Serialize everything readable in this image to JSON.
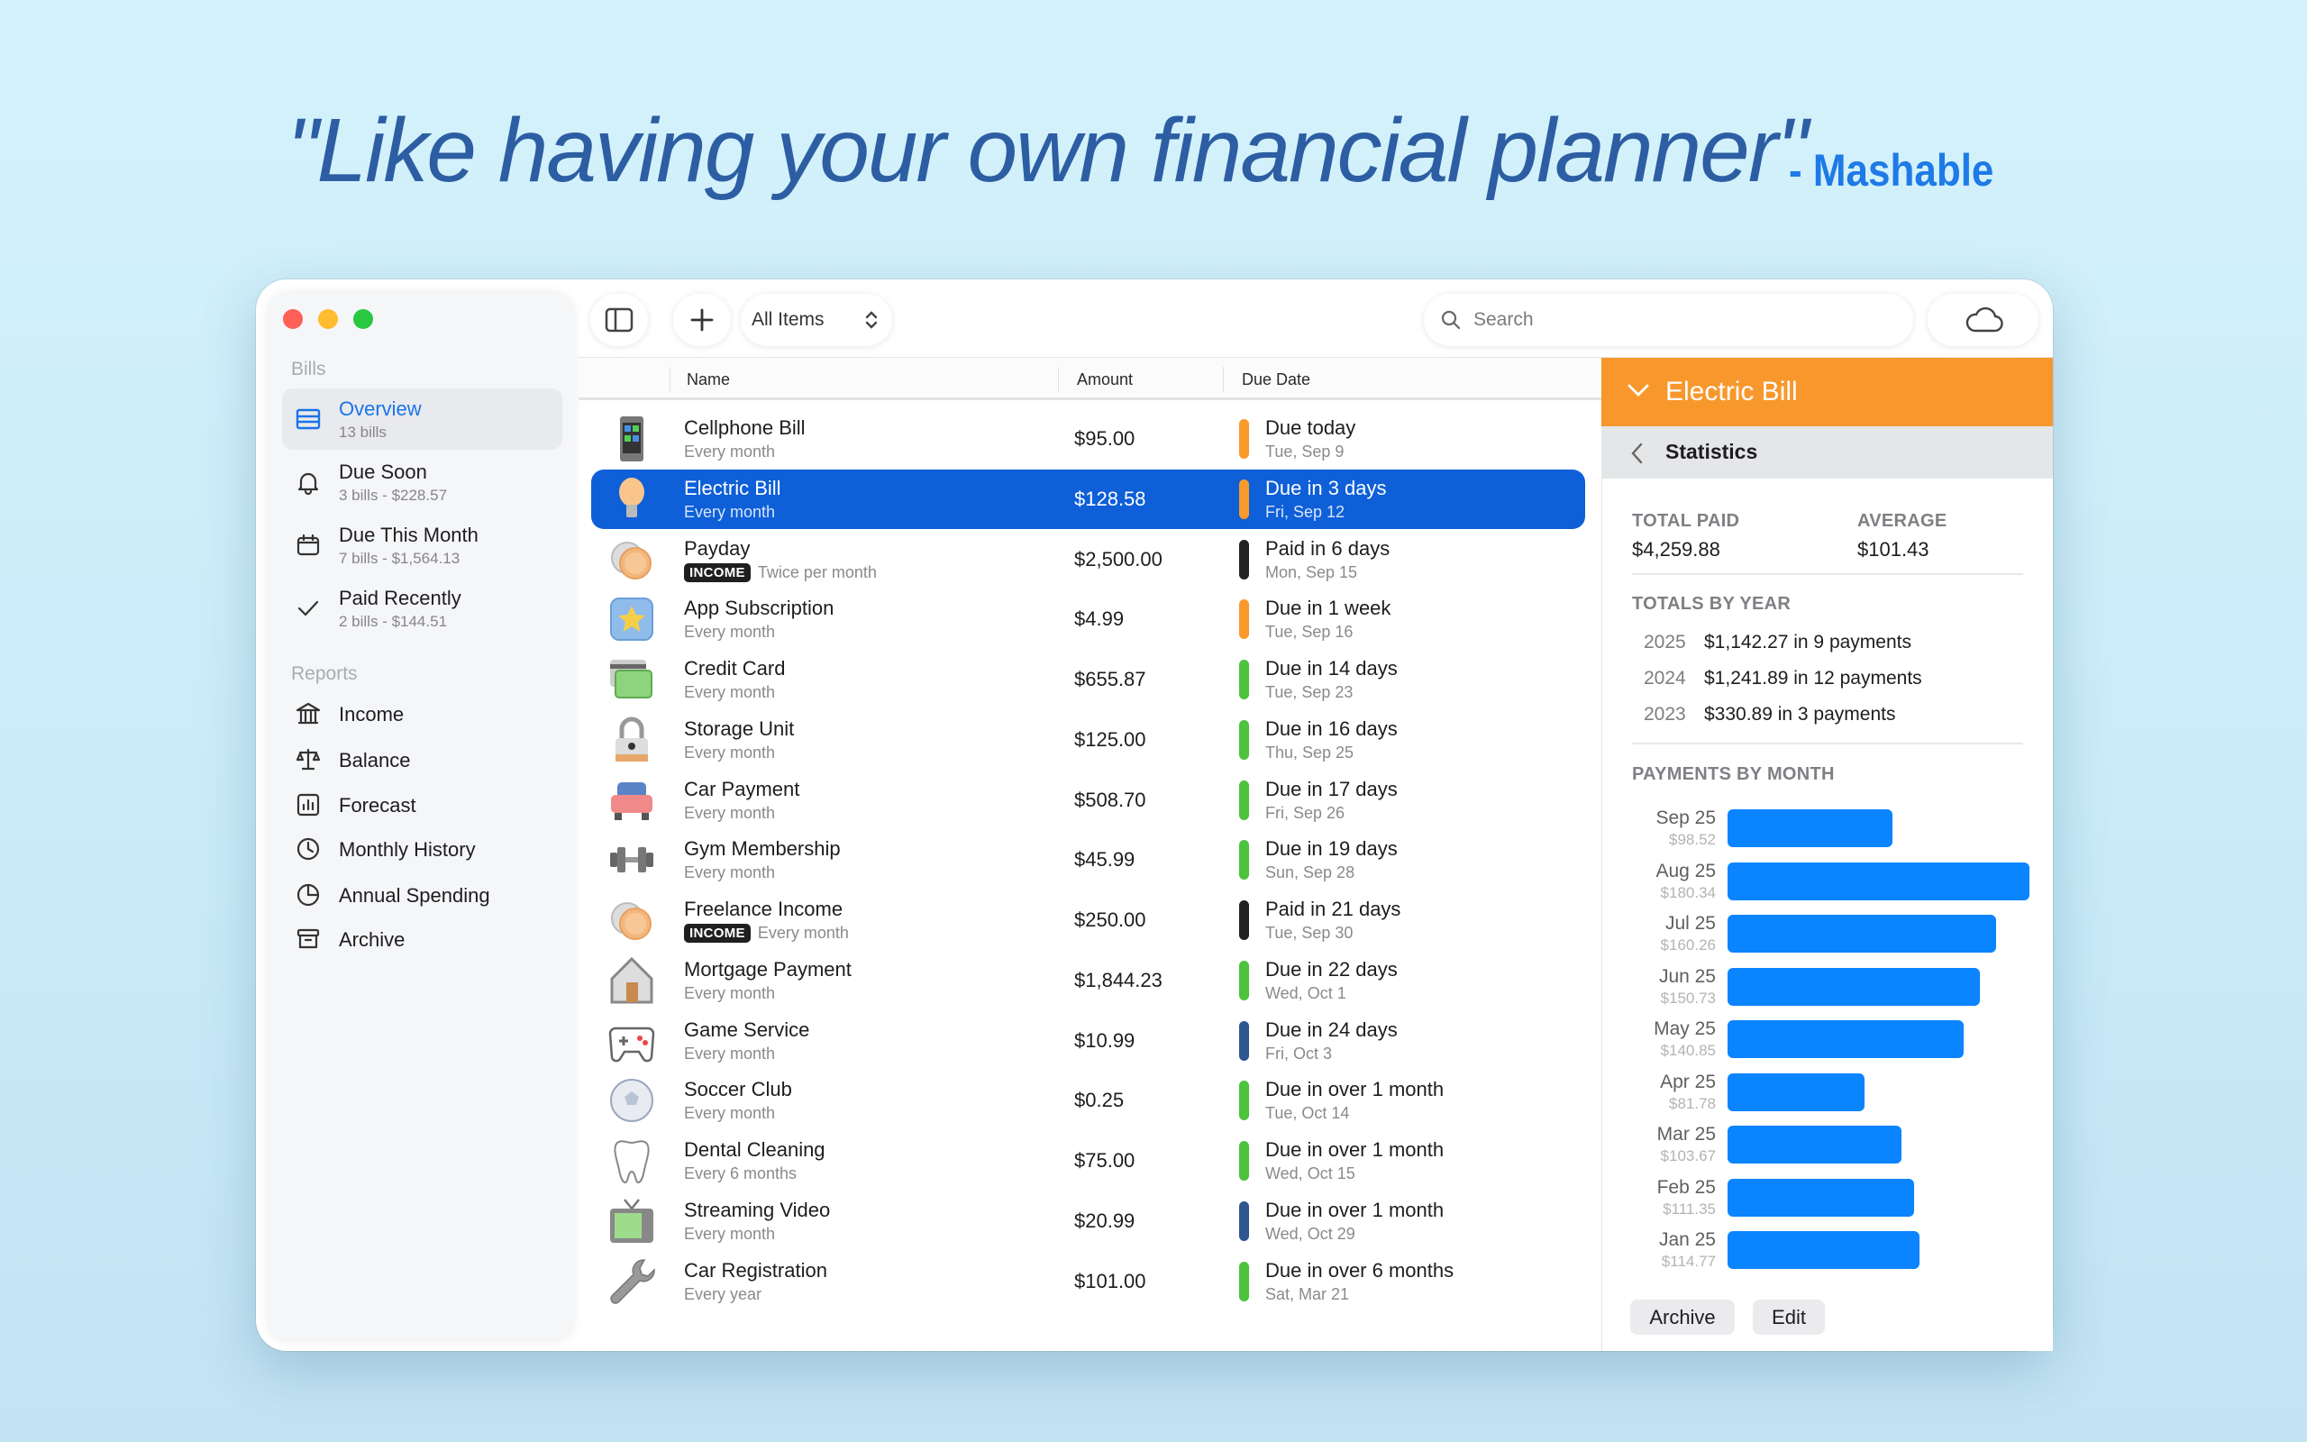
{
  "headline": {
    "quote": "\"Like having your own financial planner\"",
    "attribution": "- Mashable"
  },
  "toolbar": {
    "filter_label": "All Items",
    "search_placeholder": "Search"
  },
  "sidebar": {
    "bills_header": "Bills",
    "items": [
      {
        "title": "Overview",
        "sub": "13 bills",
        "icon": "overview-icon",
        "active": true
      },
      {
        "title": "Due Soon",
        "sub": "3 bills - $228.57",
        "icon": "bell-icon"
      },
      {
        "title": "Due This Month",
        "sub": "7 bills - $1,564.13",
        "icon": "calendar-icon"
      },
      {
        "title": "Paid Recently",
        "sub": "2 bills - $144.51",
        "icon": "checkmark-icon"
      }
    ],
    "reports_header": "Reports",
    "reports": [
      {
        "title": "Income",
        "icon": "bank-icon"
      },
      {
        "title": "Balance",
        "icon": "scale-icon"
      },
      {
        "title": "Forecast",
        "icon": "chart-icon"
      },
      {
        "title": "Monthly History",
        "icon": "clock-icon"
      },
      {
        "title": "Annual Spending",
        "icon": "pie-icon"
      },
      {
        "title": "Archive",
        "icon": "archive-icon"
      }
    ]
  },
  "list": {
    "columns": [
      "Name",
      "Amount",
      "Due Date"
    ],
    "status_colors": {
      "orange": "#fa9a2c",
      "black": "#232323",
      "green": "#4cc23d",
      "navy": "#2f5690"
    },
    "rows": [
      {
        "name": "Cellphone Bill",
        "sub": "Every month",
        "amount": "$95.00",
        "due": "Due today",
        "date": "Tue, Sep 9",
        "status": "orange",
        "icon": "cellphone"
      },
      {
        "name": "Electric Bill",
        "sub": "Every month",
        "amount": "$128.58",
        "due": "Due in 3 days",
        "date": "Fri, Sep 12",
        "status": "orange",
        "icon": "lightbulb",
        "selected": true
      },
      {
        "name": "Payday",
        "sub": "Twice per month",
        "badge": "INCOME",
        "amount": "$2,500.00",
        "due": "Paid in 6 days",
        "date": "Mon, Sep 15",
        "status": "black",
        "icon": "coins"
      },
      {
        "name": "App Subscription",
        "sub": "Every month",
        "amount": "$4.99",
        "due": "Due in 1 week",
        "date": "Tue, Sep 16",
        "status": "orange",
        "icon": "star"
      },
      {
        "name": "Credit Card",
        "sub": "Every month",
        "amount": "$655.87",
        "due": "Due in 14 days",
        "date": "Tue, Sep 23",
        "status": "green",
        "icon": "credit-card"
      },
      {
        "name": "Storage Unit",
        "sub": "Every month",
        "amount": "$125.00",
        "due": "Due in 16 days",
        "date": "Thu, Sep 25",
        "status": "green",
        "icon": "padlock"
      },
      {
        "name": "Car Payment",
        "sub": "Every month",
        "amount": "$508.70",
        "due": "Due in 17 days",
        "date": "Fri, Sep 26",
        "status": "green",
        "icon": "car"
      },
      {
        "name": "Gym Membership",
        "sub": "Every month",
        "amount": "$45.99",
        "due": "Due in 19 days",
        "date": "Sun, Sep 28",
        "status": "green",
        "icon": "dumbbell"
      },
      {
        "name": "Freelance Income",
        "sub": "Every month",
        "badge": "INCOME",
        "amount": "$250.00",
        "due": "Paid in 21 days",
        "date": "Tue, Sep 30",
        "status": "black",
        "icon": "coins"
      },
      {
        "name": "Mortgage Payment",
        "sub": "Every month",
        "amount": "$1,844.23",
        "due": "Due in 22 days",
        "date": "Wed, Oct 1",
        "status": "green",
        "icon": "house"
      },
      {
        "name": "Game Service",
        "sub": "Every month",
        "amount": "$10.99",
        "due": "Due in 24 days",
        "date": "Fri, Oct 3",
        "status": "navy",
        "icon": "gamepad"
      },
      {
        "name": "Soccer Club",
        "sub": "Every month",
        "amount": "$0.25",
        "due": "Due in over 1 month",
        "date": "Tue, Oct 14",
        "status": "green",
        "icon": "soccer-ball"
      },
      {
        "name": "Dental Cleaning",
        "sub": "Every 6 months",
        "amount": "$75.00",
        "due": "Due in over 1 month",
        "date": "Wed, Oct 15",
        "status": "green",
        "icon": "tooth"
      },
      {
        "name": "Streaming Video",
        "sub": "Every month",
        "amount": "$20.99",
        "due": "Due in over 1 month",
        "date": "Wed, Oct 29",
        "status": "navy",
        "icon": "tv"
      },
      {
        "name": "Car Registration",
        "sub": "Every year",
        "amount": "$101.00",
        "due": "Due in over 6 months",
        "date": "Sat, Mar 21",
        "status": "green",
        "icon": "wrench"
      }
    ]
  },
  "detail": {
    "title": "Electric Bill",
    "header_color": "#f8982c",
    "section": "Statistics",
    "total_paid_label": "TOTAL PAID",
    "total_paid": "$4,259.88",
    "average_label": "AVERAGE",
    "average": "$101.43",
    "totals_by_year_label": "TOTALS BY YEAR",
    "years": [
      {
        "year": "2025",
        "text": "$1,142.27 in 9 payments"
      },
      {
        "year": "2024",
        "text": "$1,241.89 in 12 payments"
      },
      {
        "year": "2023",
        "text": "$330.89 in 3 payments"
      }
    ],
    "payments_by_month_label": "PAYMENTS BY MONTH",
    "archive_label": "Archive",
    "edit_label": "Edit"
  },
  "chart_data": {
    "type": "bar",
    "orientation": "horizontal",
    "categories": [
      "Sep 25",
      "Aug 25",
      "Jul 25",
      "Jun 25",
      "May 25",
      "Apr 25",
      "Mar 25",
      "Feb 25",
      "Jan 25"
    ],
    "value_labels": [
      "$98.52",
      "$180.34",
      "$160.26",
      "$150.73",
      "$140.85",
      "$81.78",
      "$103.67",
      "$111.35",
      "$114.77"
    ],
    "values": [
      98.52,
      180.34,
      160.26,
      150.73,
      140.85,
      81.78,
      103.67,
      111.35,
      114.77
    ],
    "color": "#0a84ff",
    "title": "PAYMENTS BY MONTH"
  }
}
